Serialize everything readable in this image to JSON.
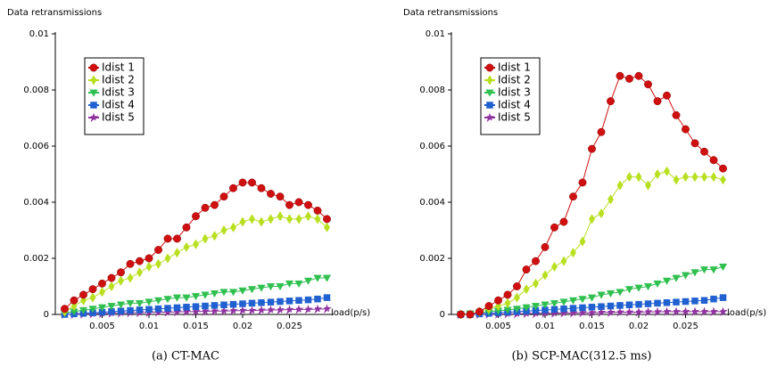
{
  "chart_data": [
    {
      "type": "line",
      "ylabel": "Data retransmissions",
      "xlabel": "load(p/s)",
      "caption": "(a) CT-MAC",
      "xlim": [
        0,
        0.03
      ],
      "ylim": [
        0,
        0.01
      ],
      "xticks": [
        0.005,
        0.01,
        0.015,
        0.02,
        0.025
      ],
      "yticks": [
        0,
        0.002,
        0.004,
        0.006,
        0.008,
        0.01
      ],
      "legend": "upper left",
      "x": [
        0.001,
        0.002,
        0.003,
        0.004,
        0.005,
        0.006,
        0.007,
        0.008,
        0.009,
        0.01,
        0.011,
        0.012,
        0.013,
        0.014,
        0.015,
        0.016,
        0.017,
        0.018,
        0.019,
        0.02,
        0.021,
        0.022,
        0.023,
        0.024,
        0.025,
        0.026,
        0.027,
        0.028,
        0.029
      ],
      "series": [
        {
          "name": "Idist 1",
          "color": "#d01010",
          "marker": "circle",
          "values": [
            0.0002,
            0.0005,
            0.0007,
            0.0009,
            0.0011,
            0.0013,
            0.0015,
            0.0018,
            0.0019,
            0.002,
            0.0023,
            0.0027,
            0.0027,
            0.0031,
            0.0035,
            0.0038,
            0.0039,
            0.0042,
            0.0045,
            0.0047,
            0.0047,
            0.0045,
            0.0043,
            0.0042,
            0.0039,
            0.004,
            0.0039,
            0.0037,
            0.0034
          ]
        },
        {
          "name": "Idist 2",
          "color": "#b8e020",
          "marker": "diamond",
          "values": [
            0.0001,
            0.0003,
            0.0005,
            0.0006,
            0.0008,
            0.001,
            0.0012,
            0.0013,
            0.0015,
            0.0017,
            0.0018,
            0.002,
            0.0022,
            0.0024,
            0.0025,
            0.0027,
            0.0028,
            0.003,
            0.0031,
            0.0033,
            0.0034,
            0.0033,
            0.0034,
            0.0035,
            0.0034,
            0.0034,
            0.0035,
            0.0034,
            0.0031
          ]
        },
        {
          "name": "Idist 3",
          "color": "#30c050",
          "marker": "triangle",
          "values": [
            5e-05,
            0.0001,
            0.00015,
            0.0002,
            0.00025,
            0.0003,
            0.00035,
            0.0004,
            0.0004,
            0.00045,
            0.0005,
            0.00055,
            0.0006,
            0.0006,
            0.00065,
            0.0007,
            0.00075,
            0.0008,
            0.0008,
            0.00085,
            0.0009,
            0.00095,
            0.001,
            0.001,
            0.0011,
            0.0011,
            0.0012,
            0.0013,
            0.0013
          ]
        },
        {
          "name": "Idist 4",
          "color": "#2060d0",
          "marker": "square",
          "values": [
            0,
            2e-05,
            4e-05,
            6e-05,
            8e-05,
            0.0001,
            0.00012,
            0.00014,
            0.00016,
            0.00018,
            0.0002,
            0.00022,
            0.00024,
            0.00026,
            0.00028,
            0.0003,
            0.00032,
            0.00034,
            0.00036,
            0.00038,
            0.0004,
            0.00042,
            0.00044,
            0.00046,
            0.00048,
            0.0005,
            0.00052,
            0.00055,
            0.0006
          ]
        },
        {
          "name": "Idist 5",
          "color": "#9030a0",
          "marker": "star",
          "values": [
            0,
            0,
            1e-05,
            2e-05,
            3e-05,
            4e-05,
            5e-05,
            6e-05,
            6e-05,
            7e-05,
            8e-05,
            8e-05,
            9e-05,
            0.0001,
            0.0001,
            0.00011,
            0.00012,
            0.00012,
            0.00013,
            0.00014,
            0.00014,
            0.00015,
            0.00016,
            0.00016,
            0.00017,
            0.00018,
            0.00018,
            0.00019,
            0.0002
          ]
        }
      ]
    },
    {
      "type": "line",
      "ylabel": "Data retransmissions",
      "xlabel": "load(p/s)",
      "caption": "(b) SCP-MAC(312.5 ms)",
      "xlim": [
        0,
        0.03
      ],
      "ylim": [
        0,
        0.01
      ],
      "xticks": [
        0.005,
        0.01,
        0.015,
        0.02,
        0.025
      ],
      "yticks": [
        0,
        0.002,
        0.004,
        0.006,
        0.008,
        0.01
      ],
      "legend": "upper left",
      "x": [
        0.001,
        0.002,
        0.003,
        0.004,
        0.005,
        0.006,
        0.007,
        0.008,
        0.009,
        0.01,
        0.011,
        0.012,
        0.013,
        0.014,
        0.015,
        0.016,
        0.017,
        0.018,
        0.019,
        0.02,
        0.021,
        0.022,
        0.023,
        0.024,
        0.025,
        0.026,
        0.027,
        0.028,
        0.029
      ],
      "series": [
        {
          "name": "Idist 1",
          "color": "#d01010",
          "marker": "circle",
          "values": [
            0,
            0,
            0.0001,
            0.0003,
            0.0005,
            0.0007,
            0.001,
            0.0016,
            0.0019,
            0.0024,
            0.0031,
            0.0033,
            0.0042,
            0.0047,
            0.0059,
            0.0065,
            0.0076,
            0.0085,
            0.0084,
            0.0085,
            0.0082,
            0.0076,
            0.0078,
            0.0071,
            0.0066,
            0.0061,
            0.0058,
            0.0055,
            0.0052
          ]
        },
        {
          "name": "Idist 2",
          "color": "#b8e020",
          "marker": "diamond",
          "values": [
            0,
            0,
            0.0001,
            0.0002,
            0.0003,
            0.0004,
            0.0006,
            0.0009,
            0.0011,
            0.0014,
            0.0017,
            0.0019,
            0.0022,
            0.0026,
            0.0034,
            0.0036,
            0.0041,
            0.0046,
            0.0049,
            0.0049,
            0.0046,
            0.005,
            0.0051,
            0.0048,
            0.0049,
            0.0049,
            0.0049,
            0.0049,
            0.0048
          ]
        },
        {
          "name": "Idist 3",
          "color": "#30c050",
          "marker": "triangle",
          "values": [
            0,
            3e-05,
            6e-05,
            0.0001,
            0.00013,
            0.00016,
            0.0002,
            0.00025,
            0.0003,
            0.00035,
            0.0004,
            0.00045,
            0.0005,
            0.00055,
            0.0006,
            0.0007,
            0.00075,
            0.0008,
            0.0009,
            0.00095,
            0.001,
            0.0011,
            0.0012,
            0.0013,
            0.0014,
            0.0015,
            0.0016,
            0.0016,
            0.0017
          ]
        },
        {
          "name": "Idist 4",
          "color": "#2060d0",
          "marker": "square",
          "values": [
            0,
            0,
            2e-05,
            4e-05,
            6e-05,
            8e-05,
            0.0001,
            0.00012,
            0.00014,
            0.00016,
            0.00018,
            0.0002,
            0.00022,
            0.00024,
            0.00026,
            0.00028,
            0.0003,
            0.00032,
            0.00034,
            0.00036,
            0.00038,
            0.0004,
            0.00042,
            0.00044,
            0.00046,
            0.00048,
            0.0005,
            0.00055,
            0.0006
          ]
        },
        {
          "name": "Idist 5",
          "color": "#9030a0",
          "marker": "star",
          "values": [
            0,
            0,
            0,
            1e-05,
            1e-05,
            2e-05,
            2e-05,
            3e-05,
            3e-05,
            4e-05,
            4e-05,
            5e-05,
            5e-05,
            6e-05,
            6e-05,
            7e-05,
            7e-05,
            8e-05,
            8e-05,
            8e-05,
            9e-05,
            9e-05,
            0.0001,
            0.0001,
            0.0001,
            0.0001,
            0.0001,
            0.0001,
            0.0001
          ]
        }
      ]
    }
  ]
}
